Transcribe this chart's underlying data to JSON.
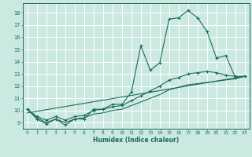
{
  "title": "",
  "xlabel": "Humidex (Indice chaleur)",
  "ylabel": "",
  "xlim": [
    -0.5,
    23.5
  ],
  "ylim": [
    8.5,
    18.8
  ],
  "xticks": [
    0,
    1,
    2,
    3,
    4,
    5,
    6,
    7,
    8,
    9,
    10,
    11,
    12,
    13,
    14,
    15,
    16,
    17,
    18,
    19,
    20,
    21,
    22,
    23
  ],
  "yticks": [
    9,
    10,
    11,
    12,
    13,
    14,
    15,
    16,
    17,
    18
  ],
  "bg_color": "#cce9e1",
  "grid_color": "#ffffff",
  "line_color": "#1a6b5a",
  "line1_x": [
    0,
    1,
    2,
    3,
    4,
    5,
    6,
    7,
    8,
    9,
    10,
    11,
    12,
    13,
    14,
    15,
    16,
    17,
    18,
    19,
    20,
    21,
    22,
    23
  ],
  "line1_y": [
    10.1,
    9.3,
    8.9,
    9.3,
    8.8,
    9.3,
    9.3,
    10.1,
    10.1,
    10.5,
    10.5,
    11.5,
    15.3,
    13.3,
    13.9,
    17.5,
    17.6,
    18.2,
    17.6,
    16.5,
    14.3,
    14.5,
    12.7,
    12.8
  ],
  "line2_x": [
    0,
    1,
    2,
    3,
    4,
    5,
    6,
    7,
    8,
    9,
    10,
    11,
    12,
    13,
    14,
    15,
    16,
    17,
    18,
    19,
    20,
    21,
    22,
    23
  ],
  "line2_y": [
    10.1,
    9.5,
    9.2,
    9.5,
    9.2,
    9.5,
    9.6,
    10.0,
    10.1,
    10.3,
    10.4,
    10.8,
    11.2,
    11.6,
    12.0,
    12.5,
    12.7,
    13.0,
    13.1,
    13.2,
    13.1,
    12.9,
    12.8,
    12.8
  ],
  "line3_x": [
    0,
    1,
    2,
    3,
    4,
    5,
    6,
    7,
    8,
    9,
    10,
    11,
    12,
    13,
    14,
    15,
    16,
    17,
    18,
    19,
    20,
    21,
    22,
    23
  ],
  "line3_y": [
    10.1,
    9.4,
    9.0,
    9.3,
    9.0,
    9.3,
    9.4,
    9.7,
    9.8,
    10.0,
    10.1,
    10.4,
    10.7,
    11.0,
    11.3,
    11.7,
    11.9,
    12.1,
    12.2,
    12.3,
    12.4,
    12.5,
    12.6,
    12.8
  ],
  "line4_x": [
    0,
    23
  ],
  "line4_y": [
    9.8,
    12.8
  ]
}
